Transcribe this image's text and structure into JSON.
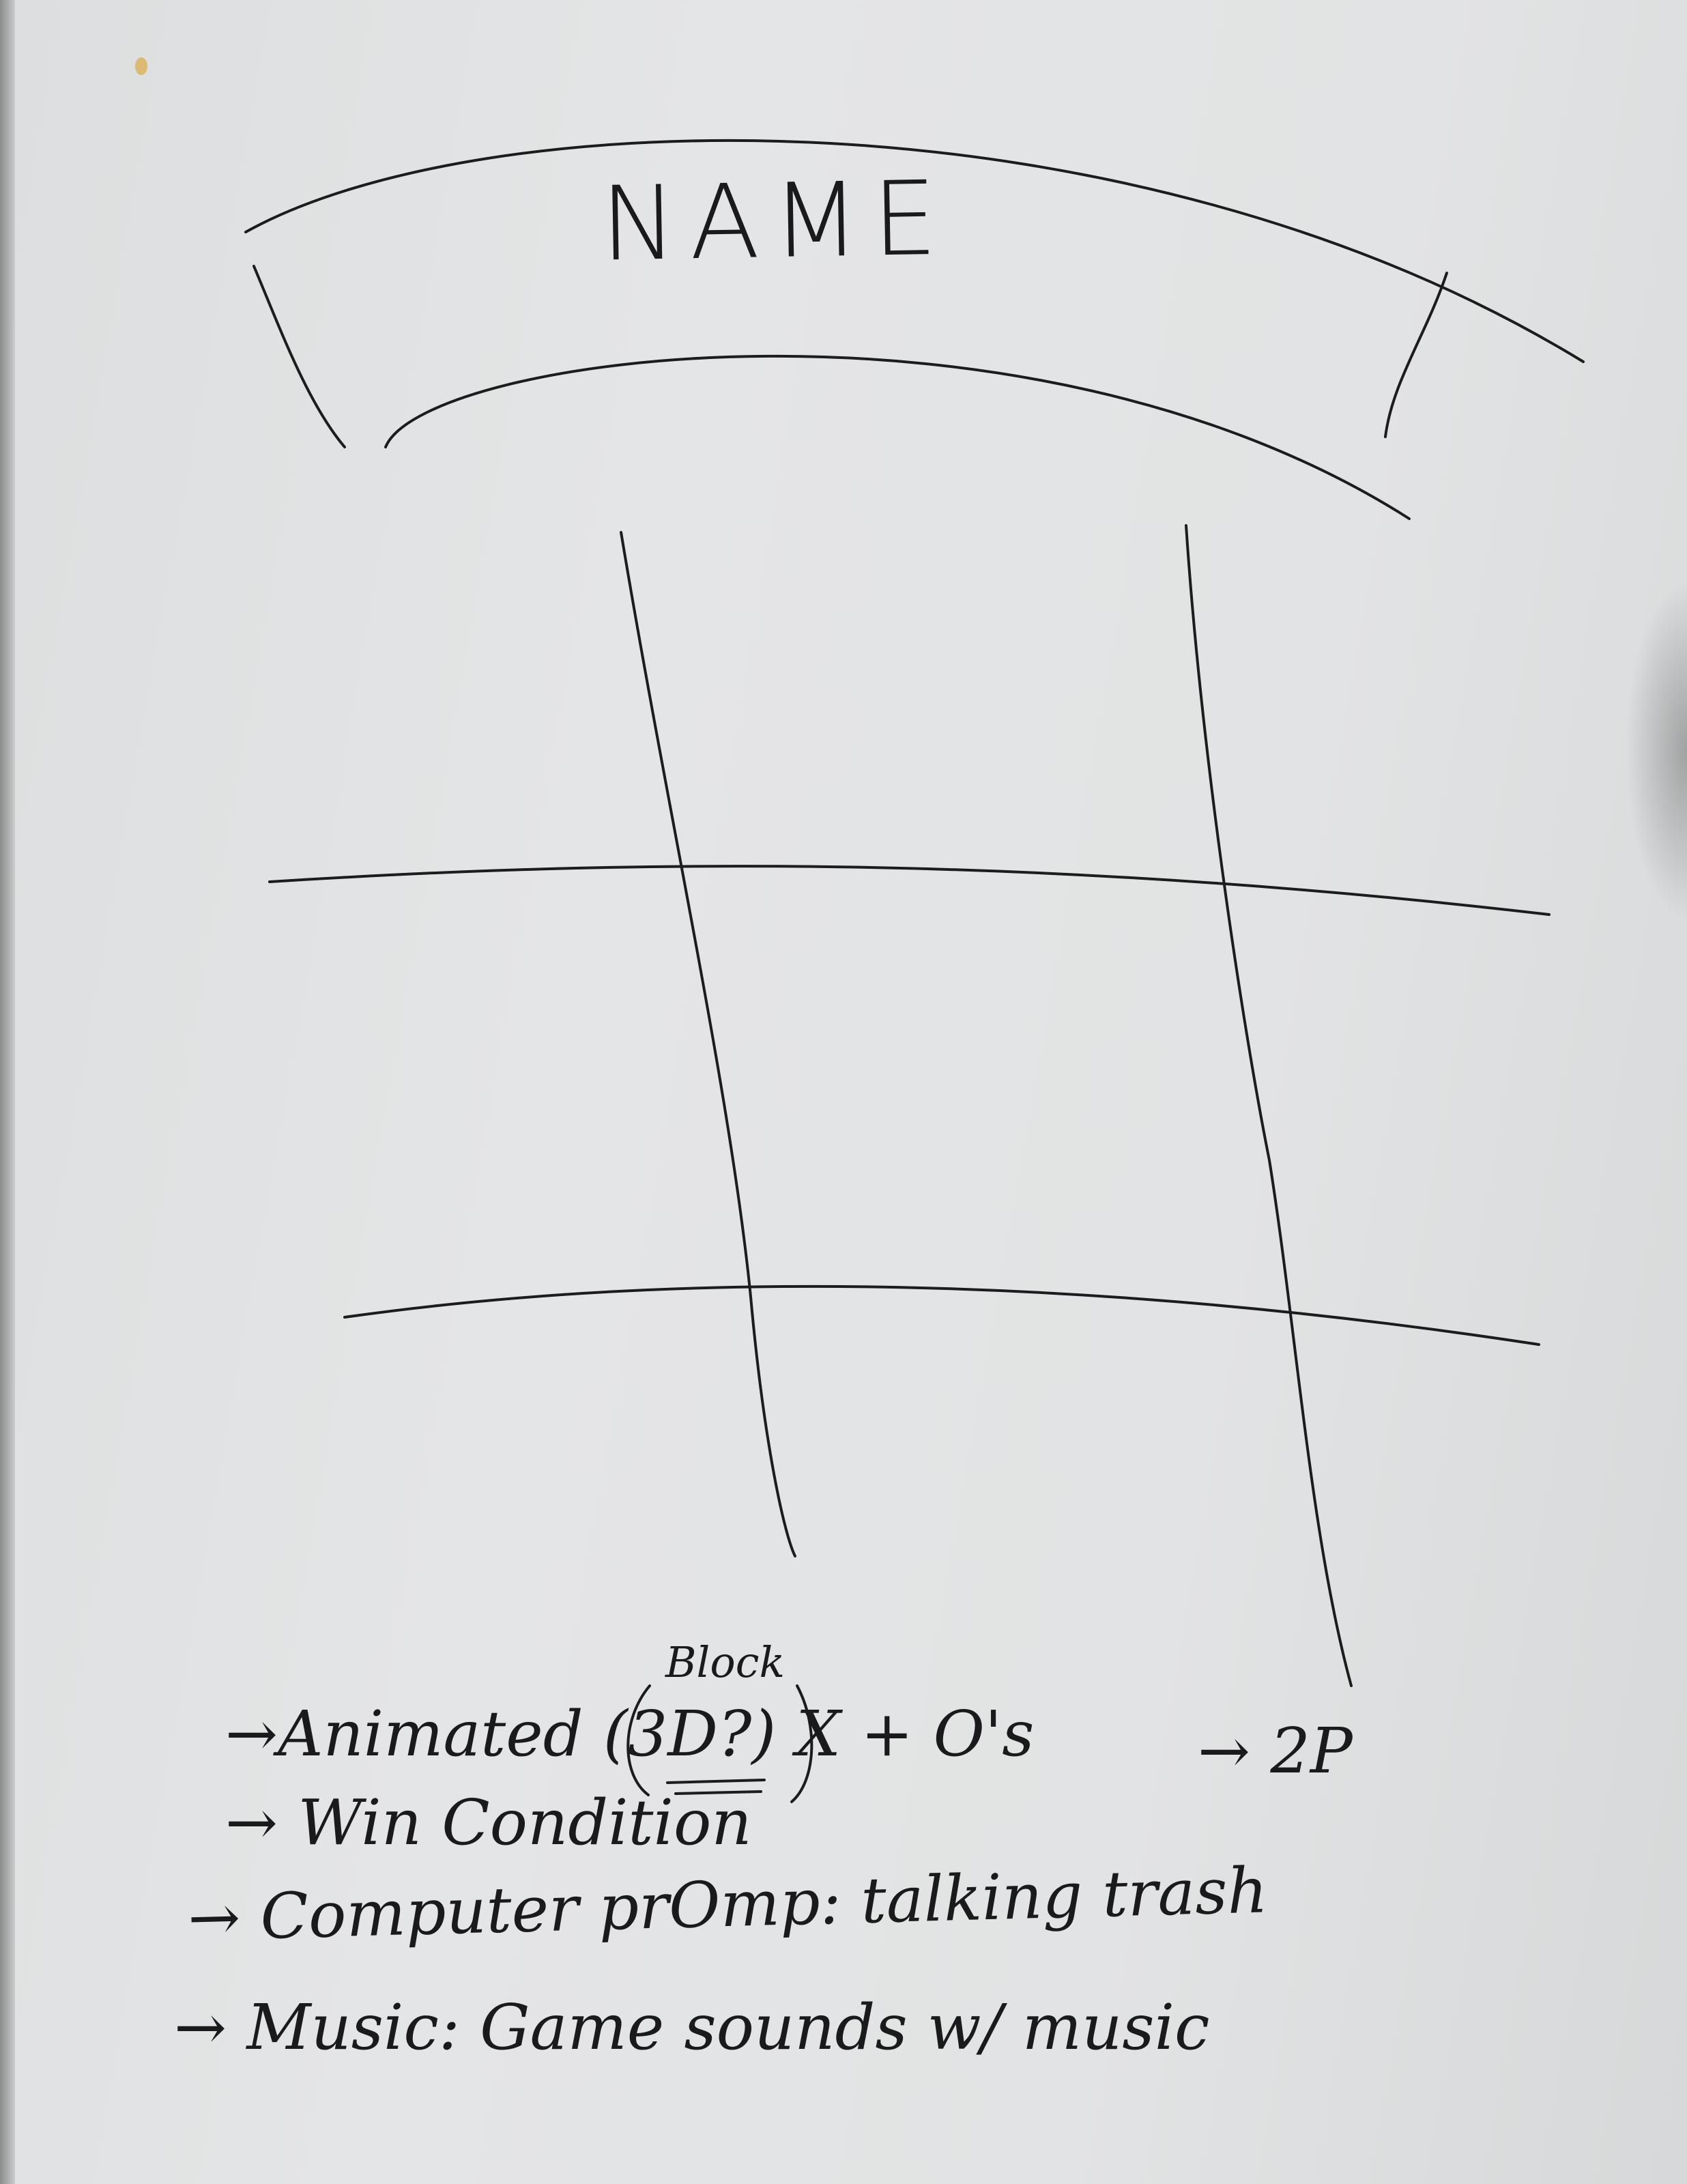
{
  "sketch": {
    "title_banner": {
      "label": "NAME"
    },
    "board": {
      "rows": 3,
      "cols": 3,
      "grid": "tic-tac-toe"
    },
    "notes": {
      "line1": {
        "main": "→Animated (3D?) X + O's",
        "annotation": "Block",
        "side": "→ 2P"
      },
      "line2": "→ Win Condition",
      "line3": "→ Computer prOmp: talking trash",
      "line4": "→ Music: Game sounds w/ music"
    }
  }
}
